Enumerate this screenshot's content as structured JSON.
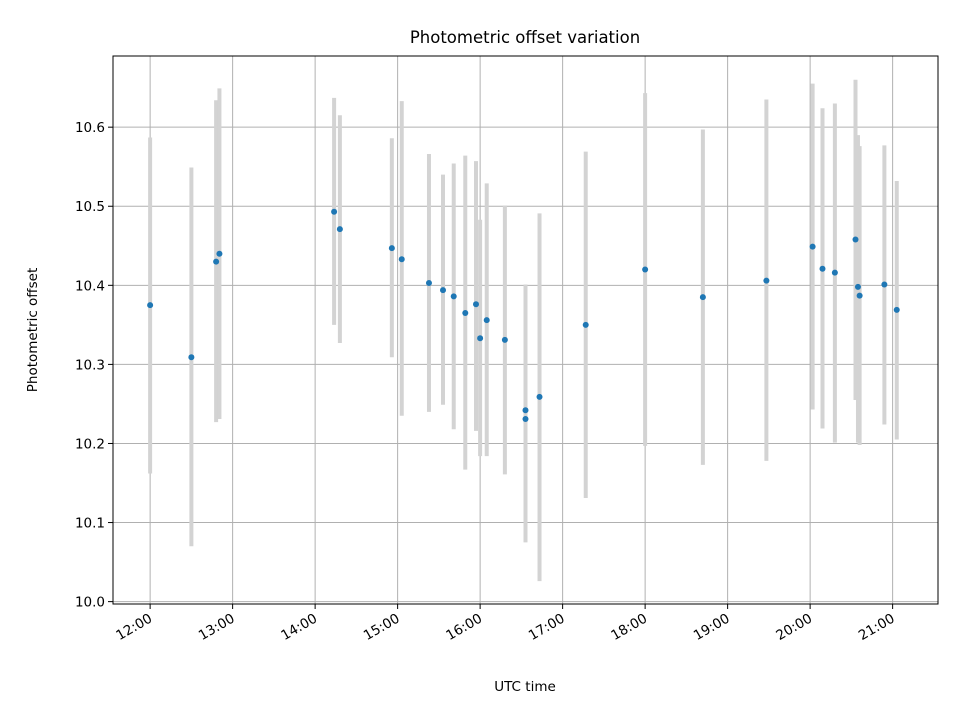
{
  "chart_data": {
    "type": "scatter",
    "title": "Photometric offset variation",
    "xlabel": "UTC time",
    "ylabel": "Photometric offset",
    "grid": true,
    "x_axis": {
      "unit": "UTC hour (decimal)",
      "range": [
        11.55,
        21.55
      ],
      "tick_values": [
        12,
        13,
        14,
        15,
        16,
        17,
        18,
        19,
        20,
        21
      ],
      "tick_labels": [
        "12:00",
        "13:00",
        "14:00",
        "15:00",
        "16:00",
        "17:00",
        "18:00",
        "19:00",
        "20:00",
        "21:00"
      ]
    },
    "y_axis": {
      "range": [
        9.997,
        10.69
      ],
      "tick_values": [
        10.0,
        10.1,
        10.2,
        10.3,
        10.4,
        10.5,
        10.6
      ],
      "tick_labels": [
        "10.0",
        "10.1",
        "10.2",
        "10.3",
        "10.4",
        "10.5",
        "10.6"
      ]
    },
    "colors": {
      "points": "#1f77b4",
      "error_bars": "#d3d3d3",
      "grid": "#b0b0b0"
    },
    "points": [
      {
        "x": 12.0,
        "y": 10.375,
        "low": 10.162,
        "high": 10.587
      },
      {
        "x": 12.5,
        "y": 10.309,
        "low": 10.07,
        "high": 10.549
      },
      {
        "x": 12.8,
        "y": 10.43,
        "low": 10.227,
        "high": 10.634
      },
      {
        "x": 12.84,
        "y": 10.44,
        "low": 10.231,
        "high": 10.649
      },
      {
        "x": 14.23,
        "y": 10.493,
        "low": 10.35,
        "high": 10.637
      },
      {
        "x": 14.3,
        "y": 10.471,
        "low": 10.327,
        "high": 10.615
      },
      {
        "x": 14.93,
        "y": 10.447,
        "low": 10.309,
        "high": 10.586
      },
      {
        "x": 15.05,
        "y": 10.433,
        "low": 10.235,
        "high": 10.633
      },
      {
        "x": 15.38,
        "y": 10.403,
        "low": 10.24,
        "high": 10.566
      },
      {
        "x": 15.55,
        "y": 10.394,
        "low": 10.249,
        "high": 10.54
      },
      {
        "x": 15.68,
        "y": 10.386,
        "low": 10.218,
        "high": 10.554
      },
      {
        "x": 15.82,
        "y": 10.365,
        "low": 10.167,
        "high": 10.564
      },
      {
        "x": 15.95,
        "y": 10.376,
        "low": 10.216,
        "high": 10.557
      },
      {
        "x": 16.0,
        "y": 10.333,
        "low": 10.184,
        "high": 10.483
      },
      {
        "x": 16.08,
        "y": 10.356,
        "low": 10.184,
        "high": 10.529
      },
      {
        "x": 16.3,
        "y": 10.331,
        "low": 10.161,
        "high": 10.501
      },
      {
        "x": 16.55,
        "y": 10.242,
        "low": 10.083,
        "high": 10.401
      },
      {
        "x": 16.55,
        "y": 10.231,
        "low": 10.075,
        "high": 10.388
      },
      {
        "x": 16.72,
        "y": 10.259,
        "low": 10.026,
        "high": 10.491
      },
      {
        "x": 17.28,
        "y": 10.35,
        "low": 10.131,
        "high": 10.569
      },
      {
        "x": 18.0,
        "y": 10.42,
        "low": 10.197,
        "high": 10.643
      },
      {
        "x": 18.7,
        "y": 10.385,
        "low": 10.173,
        "high": 10.597
      },
      {
        "x": 19.47,
        "y": 10.406,
        "low": 10.178,
        "high": 10.635
      },
      {
        "x": 20.03,
        "y": 10.449,
        "low": 10.243,
        "high": 10.655
      },
      {
        "x": 20.15,
        "y": 10.421,
        "low": 10.219,
        "high": 10.624
      },
      {
        "x": 20.3,
        "y": 10.416,
        "low": 10.201,
        "high": 10.63
      },
      {
        "x": 20.55,
        "y": 10.458,
        "low": 10.255,
        "high": 10.66
      },
      {
        "x": 20.58,
        "y": 10.398,
        "low": 10.201,
        "high": 10.59
      },
      {
        "x": 20.6,
        "y": 10.387,
        "low": 10.198,
        "high": 10.576
      },
      {
        "x": 20.9,
        "y": 10.401,
        "low": 10.224,
        "high": 10.577
      },
      {
        "x": 21.05,
        "y": 10.369,
        "low": 10.205,
        "high": 10.532
      }
    ]
  }
}
